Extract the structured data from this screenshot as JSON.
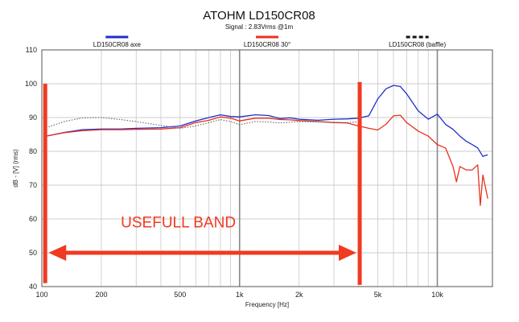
{
  "chart_data": {
    "type": "line",
    "title": "ATOHM LD150CR08",
    "subtitle": "Signal : 2.83Vrms @1m",
    "xlabel": "Frequency [Hz]",
    "ylabel": "dB - [V] (rms)",
    "xscale": "log",
    "xlim": [
      100,
      19000
    ],
    "ylim": [
      40,
      110
    ],
    "grid": true,
    "legend_position": "top",
    "x_tick_labels": [
      {
        "value": 100,
        "label": "100"
      },
      {
        "value": 200,
        "label": "200"
      },
      {
        "value": 500,
        "label": "500"
      },
      {
        "value": 1000,
        "label": "1k"
      },
      {
        "value": 2000,
        "label": "2k"
      },
      {
        "value": 5000,
        "label": "5k"
      },
      {
        "value": 10000,
        "label": "10k"
      }
    ],
    "y_ticks": [
      40,
      50,
      60,
      70,
      80,
      90,
      100,
      110
    ],
    "series": [
      {
        "name": "LD150CR08 axe",
        "color": "#1f2fc9",
        "style": "solid",
        "x": [
          105,
          130,
          160,
          200,
          250,
          300,
          400,
          500,
          600,
          700,
          800,
          900,
          1000,
          1200,
          1400,
          1600,
          1800,
          2000,
          2500,
          3000,
          3500,
          4000,
          4500,
          5000,
          5500,
          6000,
          6500,
          7000,
          8000,
          9000,
          10000,
          11000,
          12000,
          13000,
          14000,
          15000,
          16000,
          17000,
          18000
        ],
        "y": [
          84.5,
          85.6,
          86.4,
          86.6,
          86.6,
          86.8,
          87,
          87.5,
          89,
          90,
          90.8,
          90.3,
          90.2,
          90.8,
          90.6,
          89.7,
          89.9,
          89.5,
          89.2,
          89.5,
          89.6,
          89.8,
          90.5,
          95.5,
          98.5,
          99.5,
          99.2,
          97,
          92,
          89.5,
          91,
          88,
          86.5,
          84.5,
          83,
          82,
          81,
          78.5,
          79
        ]
      },
      {
        "name": "LD150CR08 30°",
        "color": "#e8311f",
        "style": "solid",
        "x": [
          105,
          130,
          160,
          200,
          250,
          300,
          400,
          500,
          600,
          700,
          800,
          900,
          1000,
          1200,
          1400,
          1600,
          1800,
          2000,
          2500,
          3000,
          3500,
          4000,
          4500,
          5000,
          5500,
          6000,
          6500,
          7000,
          8000,
          9000,
          10000,
          11000,
          12000,
          12500,
          13000,
          14000,
          15000,
          16000,
          16500,
          17000,
          18000
        ],
        "y": [
          84.5,
          85.5,
          86.1,
          86.4,
          86.4,
          86.5,
          86.6,
          87,
          88.5,
          89.2,
          90.2,
          89.8,
          89,
          89.8,
          89.8,
          89.4,
          89.3,
          89.1,
          88.8,
          88.5,
          88.4,
          87.5,
          86.8,
          86.3,
          88,
          90.5,
          90.7,
          88.5,
          86,
          84.5,
          82,
          81,
          75.5,
          71,
          75.5,
          74.5,
          74.5,
          76,
          64,
          73,
          66
        ]
      },
      {
        "name": "LD150CR08 (baffle)",
        "color": "#555555",
        "style": "dotted",
        "x": [
          105,
          130,
          160,
          200,
          250,
          300,
          400,
          500,
          600,
          700,
          800,
          900,
          1000,
          1200,
          1400,
          1600,
          1800,
          2000,
          2500,
          3000,
          3500,
          4000
        ],
        "y": [
          87,
          88.8,
          89.9,
          90,
          89.4,
          88.8,
          87.7,
          86.8,
          87.5,
          88.5,
          89.4,
          88.8,
          87.9,
          88.8,
          88.7,
          88.4,
          88.6,
          88.8,
          88.7,
          88.6,
          88.5,
          88.7
        ]
      }
    ],
    "annotations": [
      {
        "type": "vertical-marker",
        "x": 104,
        "y_range": [
          41,
          100
        ]
      },
      {
        "type": "vertical-marker",
        "x": 4050,
        "y_range": [
          40.5,
          100.5
        ]
      },
      {
        "type": "double-arrow",
        "x_range": [
          108,
          3900
        ],
        "y": 50
      },
      {
        "type": "text",
        "text": "USEFULL BAND",
        "x": 490,
        "y": 57.5
      }
    ]
  }
}
